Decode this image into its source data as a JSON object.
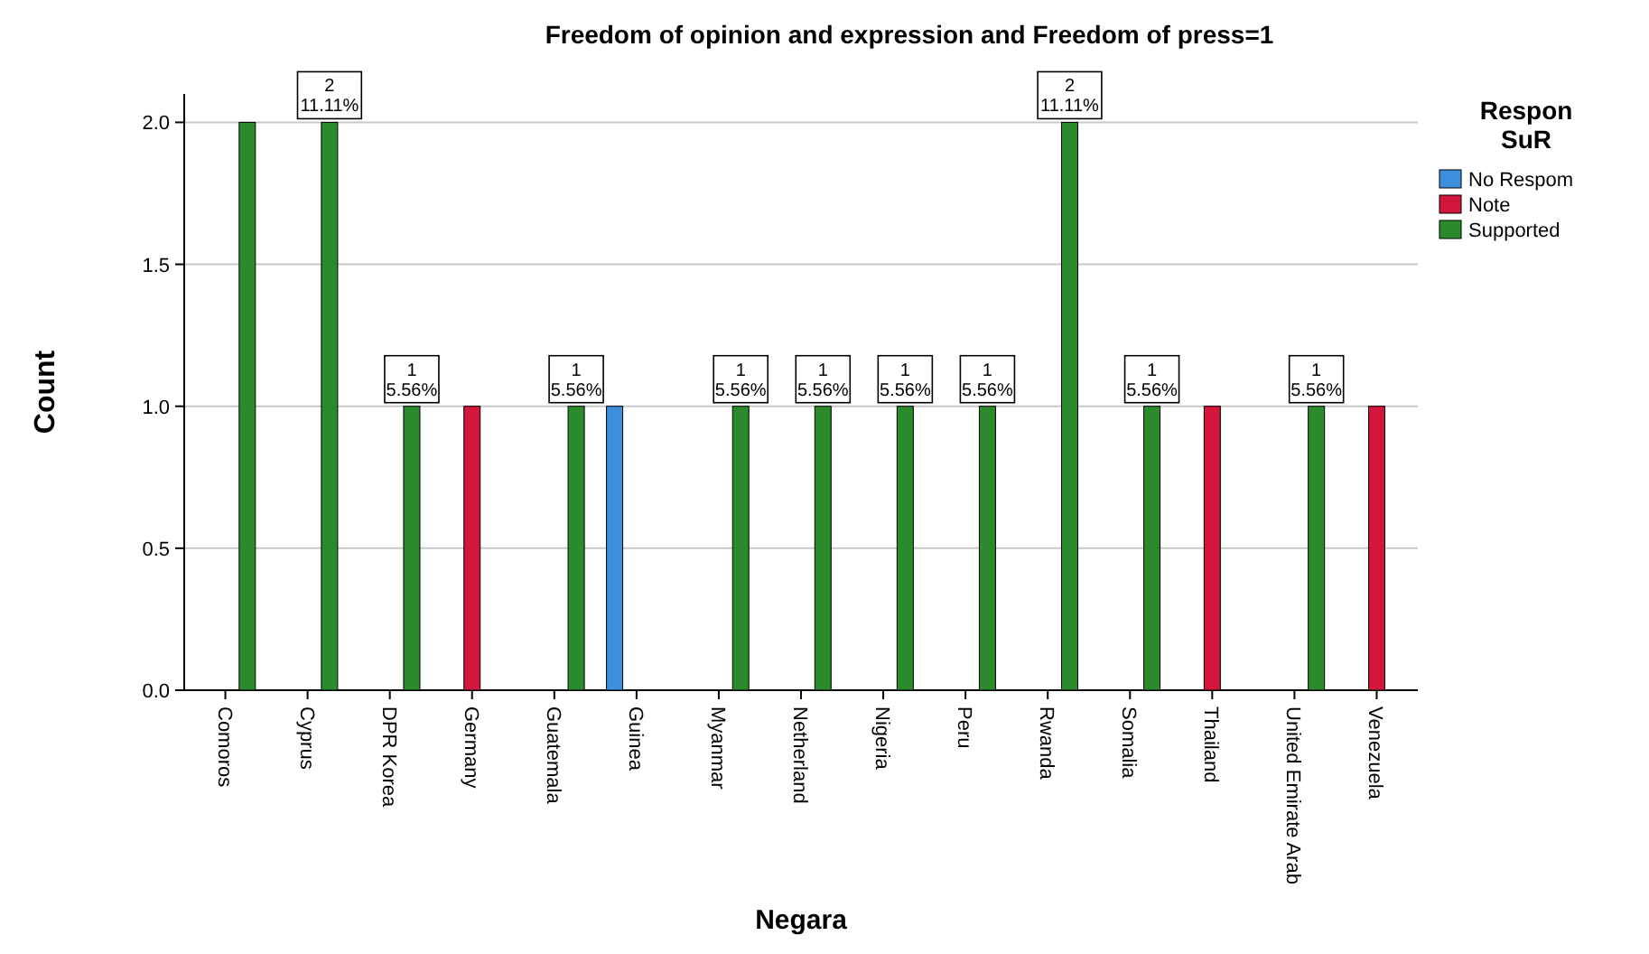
{
  "chart_data": {
    "type": "bar",
    "title": "Freedom of opinion and expression and Freedom of press=1",
    "xlabel": "Negara",
    "ylabel": "Count",
    "legend_title": "Respon SuR",
    "legend": "right",
    "grid": "y",
    "categories": [
      "Comoros",
      "Cyprus",
      "DPR Korea",
      "Germany",
      "Guatemala",
      "Guinea",
      "Myanmar",
      "Netherland",
      "Nigeria",
      "Peru",
      "Rwanda",
      "Somalia",
      "Thailand",
      "United Emirate Arab",
      "Venezuela"
    ],
    "ylim": [
      0,
      2.1
    ],
    "yticks": [
      {
        "value": 0,
        "label": "0.0"
      },
      {
        "value": 0.5,
        "label": "0.5"
      },
      {
        "value": 1,
        "label": "1.0"
      },
      {
        "value": 1.5,
        "label": "1.5"
      },
      {
        "value": 2,
        "label": "2.0"
      }
    ],
    "series": [
      {
        "name": "No Respom",
        "color": "#3e8ede",
        "values": [
          null,
          null,
          null,
          null,
          null,
          1,
          null,
          null,
          null,
          null,
          null,
          null,
          null,
          null,
          null
        ]
      },
      {
        "name": "Note",
        "color": "#d3163c",
        "values": [
          null,
          null,
          null,
          1,
          null,
          null,
          null,
          null,
          null,
          null,
          null,
          null,
          1,
          null,
          1
        ]
      },
      {
        "name": "Supported",
        "color": "#2b8a2b",
        "values": [
          2,
          2,
          1,
          null,
          1,
          null,
          1,
          1,
          1,
          1,
          2,
          1,
          null,
          1,
          null
        ],
        "value_labels": [
          null,
          "2\n11.11%",
          "1\n5.56%",
          null,
          "1\n5.56%",
          null,
          "1\n5.56%",
          "1\n5.56%",
          "1\n5.56%",
          "1\n5.56%",
          "2\n11.11%",
          "1\n5.56%",
          null,
          "1\n5.56%",
          null
        ]
      }
    ]
  }
}
